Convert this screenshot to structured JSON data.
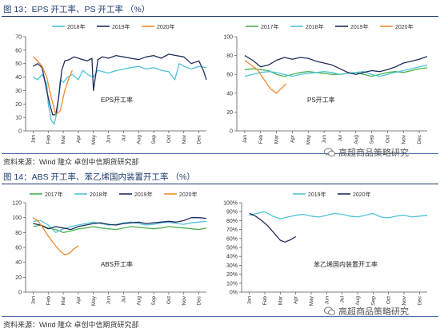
{
  "figures": {
    "fig13_title": "图 13：EPS 开工率、PS 开工率 （%）",
    "fig14_title": "图 14：ABS 开工率、苯乙烯国内装置开工率 （%）",
    "source_text": "资料来源：Wind 隆众 卓创中信期货研究部",
    "watermark_text": "高超商品策略研究"
  },
  "chart_data": [
    {
      "id": "eps",
      "type": "line",
      "title": "EPS开工率",
      "x_ticks": [
        "Jan",
        "Feb",
        "Mar",
        "Apr",
        "May",
        "Jun",
        "Jul",
        "Aug",
        "Sep",
        "Oct",
        "Nov",
        "Dec"
      ],
      "ylim": [
        0,
        70
      ],
      "y_ticks": [
        0,
        10,
        20,
        30,
        40,
        50,
        60,
        70
      ],
      "y_fmt": "",
      "legend": "top",
      "series": [
        {
          "name": "2018年",
          "color": "#4fc3d8",
          "x": [
            0,
            0.3,
            0.6,
            0.9,
            1.0,
            1.2,
            1.4,
            1.6,
            1.8,
            2.0,
            2.3,
            2.6,
            3.0,
            3.3,
            3.6,
            4.0,
            4.3,
            4.6,
            5.0,
            5.3,
            5.6,
            6.0,
            6.5,
            7.0,
            7.5,
            8.0,
            8.5,
            9.0,
            9.4,
            9.7,
            10.0,
            10.5,
            11.0,
            11.5
          ],
          "y": [
            40,
            38,
            42,
            35,
            20,
            8,
            5,
            15,
            38,
            36,
            40,
            42,
            38,
            45,
            42,
            40,
            45,
            44,
            43,
            44,
            45,
            46,
            47,
            48,
            46,
            47,
            45,
            44,
            38,
            50,
            48,
            46,
            48,
            47
          ]
        },
        {
          "name": "2019年",
          "color": "#1f2d5c",
          "x": [
            0,
            0.3,
            0.6,
            0.9,
            1.1,
            1.3,
            1.5,
            1.7,
            1.9,
            2.1,
            2.4,
            2.7,
            3.0,
            3.3,
            3.6,
            3.9,
            4.0,
            4.3,
            4.6,
            5.0,
            5.5,
            6.0,
            6.5,
            7.0,
            7.5,
            8.0,
            8.5,
            9.0,
            9.5,
            10.0,
            10.5,
            11.0,
            11.3,
            11.5
          ],
          "y": [
            48,
            50,
            47,
            30,
            20,
            12,
            12,
            25,
            45,
            52,
            53,
            55,
            54,
            53,
            52,
            54,
            30,
            53,
            55,
            54,
            56,
            55,
            54,
            53,
            55,
            56,
            54,
            57,
            56,
            55,
            50,
            52,
            45,
            38
          ]
        },
        {
          "name": "2020年",
          "color": "#f08a2a",
          "x": [
            0,
            0.3,
            0.6,
            0.9,
            1.2,
            1.5,
            1.8,
            2.1,
            2.4,
            2.6
          ],
          "y": [
            55,
            52,
            48,
            40,
            25,
            12,
            15,
            30,
            40,
            45
          ]
        }
      ]
    },
    {
      "id": "ps",
      "type": "line",
      "title": "PS开工率",
      "x_ticks": [
        "Jan",
        "Feb",
        "Mar",
        "Apr",
        "May",
        "Jun",
        "Jul",
        "Aug",
        "Sep",
        "Oct",
        "Nov",
        "Dec"
      ],
      "ylim": [
        0,
        100
      ],
      "y_ticks": [
        0,
        20,
        40,
        60,
        80,
        100
      ],
      "y_fmt": "",
      "legend": "top",
      "series": [
        {
          "name": "2017年",
          "color": "#4caf50",
          "x": [
            0,
            0.5,
            1,
            1.5,
            2,
            2.5,
            3,
            3.5,
            4,
            4.5,
            5,
            5.5,
            6,
            6.5,
            7,
            7.5,
            8,
            8.5,
            9,
            9.5,
            10,
            10.5,
            11,
            11.5
          ],
          "y": [
            65,
            66,
            65,
            64,
            60,
            58,
            60,
            62,
            63,
            62,
            61,
            60,
            60,
            61,
            62,
            60,
            58,
            60,
            62,
            63,
            62,
            64,
            66,
            67
          ]
        },
        {
          "name": "2018年",
          "color": "#4fc3d8",
          "x": [
            0,
            0.5,
            1,
            1.5,
            2,
            2.5,
            3,
            3.5,
            4,
            4.5,
            5,
            5.5,
            6,
            6.5,
            7,
            7.5,
            8,
            8.5,
            9,
            9.5,
            10,
            10.5,
            11,
            11.5
          ],
          "y": [
            58,
            60,
            62,
            63,
            62,
            60,
            58,
            60,
            61,
            62,
            63,
            62,
            60,
            61,
            62,
            63,
            60,
            58,
            60,
            62,
            64,
            66,
            68,
            70
          ]
        },
        {
          "name": "2019年",
          "color": "#1f2d5c",
          "x": [
            0,
            0.5,
            1,
            1.5,
            2,
            2.5,
            3,
            3.5,
            4,
            4.5,
            5,
            5.5,
            6,
            6.5,
            7,
            7.5,
            8,
            8.5,
            9,
            9.5,
            10,
            10.5,
            11,
            11.5
          ],
          "y": [
            80,
            75,
            68,
            70,
            75,
            78,
            76,
            78,
            77,
            74,
            72,
            70,
            66,
            62,
            60,
            62,
            64,
            63,
            65,
            68,
            72,
            74,
            76,
            79
          ]
        },
        {
          "name": "2020年",
          "color": "#f08a2a",
          "x": [
            0,
            0.4,
            0.8,
            1.2,
            1.6,
            2.0,
            2.3,
            2.6
          ],
          "y": [
            75,
            70,
            65,
            55,
            45,
            40,
            45,
            50
          ]
        }
      ]
    },
    {
      "id": "abs",
      "type": "line",
      "title": "ABS开工率",
      "x_ticks": [
        "Jan",
        "Feb",
        "Mar",
        "Apr",
        "May",
        "Jun",
        "Jul",
        "Aug",
        "Sep",
        "Oct",
        "Nov",
        "Dec"
      ],
      "ylim": [
        0,
        120
      ],
      "y_ticks": [
        0,
        20,
        40,
        60,
        80,
        100,
        120
      ],
      "y_fmt": "",
      "legend": "top",
      "series": [
        {
          "name": "2017年",
          "color": "#4caf50",
          "x": [
            0,
            0.5,
            1,
            1.5,
            2,
            2.5,
            3,
            3.5,
            4,
            4.5,
            5,
            5.5,
            6,
            6.5,
            7,
            7.5,
            8,
            8.5,
            9,
            9.5,
            10,
            10.5,
            11,
            11.5
          ],
          "y": [
            88,
            90,
            86,
            84,
            80,
            82,
            85,
            86,
            88,
            86,
            85,
            84,
            86,
            88,
            87,
            86,
            85,
            86,
            88,
            87,
            86,
            85,
            84,
            86
          ]
        },
        {
          "name": "2018年",
          "color": "#4fc3d8",
          "x": [
            0,
            0.5,
            1,
            1.5,
            2,
            2.5,
            3,
            3.5,
            4,
            4.5,
            5,
            5.5,
            6,
            6.5,
            7,
            7.5,
            8,
            8.5,
            9,
            9.5,
            10,
            10.5,
            11,
            11.5
          ],
          "y": [
            95,
            96,
            90,
            80,
            85,
            88,
            90,
            92,
            94,
            92,
            90,
            91,
            93,
            94,
            92,
            90,
            91,
            93,
            94,
            92,
            91,
            93,
            94,
            95
          ]
        },
        {
          "name": "2019年",
          "color": "#1f2d5c",
          "x": [
            0,
            0.5,
            1,
            1.5,
            2,
            2.5,
            3,
            3.5,
            4,
            4.5,
            5,
            5.5,
            6,
            6.5,
            7,
            7.5,
            8,
            8.5,
            9,
            9.5,
            10,
            10.5,
            11,
            11.5
          ],
          "y": [
            92,
            90,
            85,
            88,
            86,
            84,
            88,
            90,
            92,
            93,
            91,
            90,
            92,
            93,
            94,
            92,
            93,
            94,
            95,
            94,
            96,
            100,
            100,
            99
          ]
        },
        {
          "name": "2020年",
          "color": "#f08a2a",
          "x": [
            0,
            0.3,
            0.6,
            0.9,
            1.2,
            1.5,
            1.8,
            2.1,
            2.4,
            2.7,
            3.0
          ],
          "y": [
            100,
            96,
            88,
            78,
            70,
            62,
            55,
            50,
            52,
            58,
            62
          ]
        }
      ]
    },
    {
      "id": "styrene",
      "type": "line",
      "title": "苯乙烯国内装置开工率",
      "x_ticks": [
        "Jan",
        "Feb",
        "Mar",
        "Apr",
        "May",
        "Jun",
        "Jul",
        "Aug",
        "Sep",
        "Oct",
        "Nov",
        "Dec"
      ],
      "ylim": [
        0,
        100
      ],
      "y_ticks": [
        0,
        10,
        20,
        30,
        40,
        50,
        60,
        70,
        80,
        90,
        100
      ],
      "y_fmt": "%",
      "legend": "top",
      "series": [
        {
          "name": "2019年",
          "color": "#4fc3d8",
          "x": [
            0,
            0.5,
            1,
            1.5,
            2,
            2.5,
            3,
            3.5,
            4,
            4.5,
            5,
            5.5,
            6,
            6.5,
            7,
            7.5,
            8,
            8.5,
            9,
            9.5,
            10,
            10.5,
            11,
            11.5
          ],
          "y": [
            86,
            88,
            90,
            85,
            82,
            84,
            86,
            87,
            85,
            84,
            86,
            88,
            87,
            85,
            84,
            86,
            88,
            84,
            83,
            85,
            86,
            84,
            85,
            86
          ]
        },
        {
          "name": "2020年",
          "color": "#1f2d5c",
          "x": [
            0,
            0.4,
            0.8,
            1.2,
            1.6,
            2.0,
            2.3,
            2.6,
            3.0
          ],
          "y": [
            88,
            85,
            80,
            74,
            66,
            58,
            56,
            58,
            62
          ]
        }
      ]
    }
  ]
}
